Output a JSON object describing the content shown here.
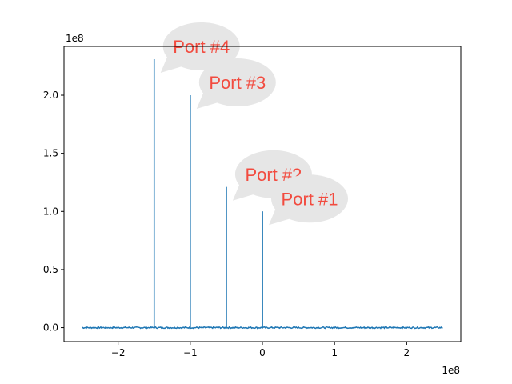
{
  "chart_data": {
    "type": "line",
    "title": "",
    "xlabel": "",
    "ylabel": "",
    "x_offset_text": "1e8",
    "y_offset_text": "1e8",
    "xlim": [
      -2.75,
      2.75
    ],
    "ylim": [
      -0.12,
      2.42
    ],
    "x_ticks": [
      -2,
      -1,
      0,
      1,
      2
    ],
    "x_tick_labels": [
      "−2",
      "−1",
      "0",
      "1",
      "2"
    ],
    "y_ticks": [
      0.0,
      0.5,
      1.0,
      1.5,
      2.0
    ],
    "y_tick_labels": [
      "0.0",
      "0.5",
      "1.0",
      "1.5",
      "2.0"
    ],
    "grid": false,
    "legend": "none",
    "series": [
      {
        "color": "#1f77b4",
        "baseline": 0.0,
        "x_range": [
          -2.5,
          2.5
        ],
        "peaks": [
          {
            "x": -1.5,
            "y": 2.31
          },
          {
            "x": -1.0,
            "y": 2.0
          },
          {
            "x": -0.5,
            "y": 1.21
          },
          {
            "x": 0.0,
            "y": 1.0
          }
        ]
      }
    ],
    "annotations": [
      {
        "text": "Port #4",
        "x": -1.5,
        "y": 2.31
      },
      {
        "text": "Port #3",
        "x": -1.0,
        "y": 2.0
      },
      {
        "text": "Port #2",
        "x": -0.5,
        "y": 1.21
      },
      {
        "text": "Port #1",
        "x": 0.0,
        "y": 1.0
      }
    ],
    "annotation_style": {
      "bubble_color": "#e6e6e6",
      "text_color": "#f24b3f"
    }
  }
}
